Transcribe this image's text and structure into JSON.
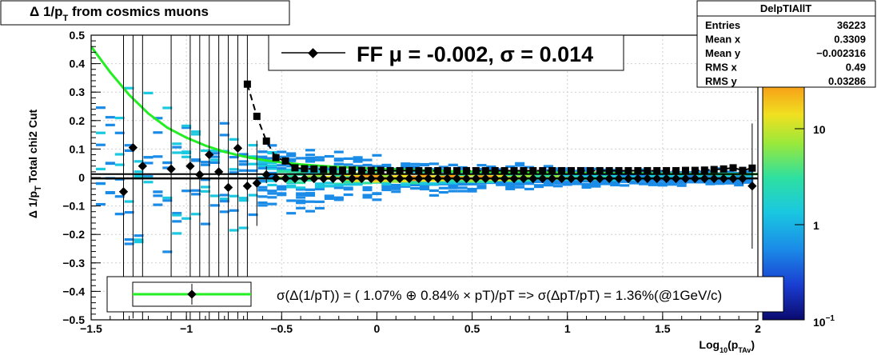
{
  "title": {
    "delta": "Δ 1/p",
    "sub": "T",
    "rest": " from cosmics muons"
  },
  "ylabel": {
    "main": "Δ 1/p",
    "sub": "T",
    "rest": "  Total chi2 Cut"
  },
  "xlabel": {
    "main": "Log",
    "sub1": "10",
    "mid": "(p",
    "sub2": "TAv",
    "end": ")"
  },
  "stats": {
    "title": "DelpTIAllT",
    "rows": [
      {
        "name": "Entries",
        "value": "36223"
      },
      {
        "name": "Mean x",
        "value": "0.3309"
      },
      {
        "name": "Mean y",
        "value": "−0.002316"
      },
      {
        "name": "RMS x",
        "value": "0.49"
      },
      {
        "name": "RMS y",
        "value": "0.03286"
      }
    ]
  },
  "fit_legend": "FF μ = -0.002, σ =   0.014",
  "resolution_legend": "σ(Δ(1/pT)) = ( 1.07% ⊕  0.84% × pT)/pT => σ(ΔpT/pT) =  1.36%(@1GeV/c)",
  "colors": {
    "fit_curve": "#22ee22",
    "markers": "#000000",
    "frame": "#000000"
  },
  "chart_data": {
    "type": "scatter",
    "xlim": [
      -1.5,
      2
    ],
    "ylim": [
      -0.5,
      0.5
    ],
    "zlim": [
      0.1,
      40
    ],
    "zscale": "log",
    "x_ticks": [
      "−1.5",
      "−1",
      "−0.5",
      "0",
      "0.5",
      "1",
      "1.5",
      "2"
    ],
    "y_ticks": [
      "−0.5",
      "−0.4",
      "−0.3",
      "−0.2",
      "−0.1",
      "0",
      "0.1",
      "0.2",
      "0.3",
      "0.4",
      "0.5"
    ],
    "z_ticks": [
      "10",
      "1",
      "10"
    ],
    "z_tick_exponent": "−1",
    "grid": true,
    "mean_points": {
      "x": [
        -1.33,
        -1.28,
        -1.23,
        -1.08,
        -0.98,
        -0.93,
        -0.88,
        -0.83,
        -0.78,
        -0.73,
        -0.68,
        -0.63,
        -0.58,
        -0.53,
        -0.48,
        -0.43,
        -0.38,
        -0.33,
        -0.28,
        -0.23,
        -0.18,
        -0.13,
        -0.08,
        -0.03,
        0.02,
        0.07,
        0.12,
        0.17,
        0.22,
        0.27,
        0.32,
        0.37,
        0.42,
        0.47,
        0.52,
        0.57,
        0.62,
        0.67,
        0.72,
        0.77,
        0.82,
        0.87,
        0.92,
        0.97,
        1.02,
        1.07,
        1.12,
        1.17,
        1.22,
        1.27,
        1.32,
        1.37,
        1.42,
        1.47,
        1.52,
        1.57,
        1.62,
        1.67,
        1.72,
        1.77,
        1.82,
        1.87,
        1.92,
        1.97
      ],
      "y": [
        -0.05,
        0.105,
        0.04,
        0.03,
        0.04,
        0.01,
        0.08,
        0.02,
        -0.035,
        0.103,
        -0.03,
        -0.02,
        0.01,
        -0.002,
        -0.003,
        -0.004,
        -0.004,
        -0.004,
        -0.004,
        -0.004,
        -0.004,
        -0.004,
        -0.004,
        -0.004,
        -0.004,
        -0.004,
        -0.004,
        -0.004,
        -0.004,
        -0.004,
        -0.004,
        -0.004,
        -0.004,
        -0.004,
        -0.004,
        -0.004,
        -0.004,
        -0.004,
        -0.004,
        -0.004,
        -0.004,
        -0.004,
        -0.004,
        -0.004,
        -0.004,
        -0.004,
        -0.004,
        -0.004,
        -0.004,
        -0.004,
        -0.004,
        -0.004,
        -0.004,
        -0.004,
        -0.004,
        -0.004,
        -0.004,
        -0.004,
        -0.004,
        -0.004,
        -0.004,
        -0.004,
        -0.004,
        -0.03
      ],
      "err": [
        0.6,
        0.6,
        0.6,
        0.6,
        0.6,
        0.6,
        0.6,
        0.6,
        0.6,
        0.6,
        0.6,
        0.15,
        0.03,
        0.005,
        0.005,
        0.004,
        0.004,
        0.004,
        0.004,
        0.004,
        0.004,
        0.004,
        0.004,
        0.004,
        0.004,
        0.004,
        0.004,
        0.004,
        0.004,
        0.004,
        0.004,
        0.004,
        0.004,
        0.004,
        0.004,
        0.004,
        0.004,
        0.004,
        0.004,
        0.004,
        0.004,
        0.004,
        0.004,
        0.004,
        0.004,
        0.004,
        0.004,
        0.004,
        0.004,
        0.004,
        0.004,
        0.004,
        0.004,
        0.004,
        0.004,
        0.004,
        0.004,
        0.004,
        0.004,
        0.006,
        0.01,
        0.015,
        0.02,
        0.22
      ]
    },
    "sigma_points": {
      "x": [
        -0.68,
        -0.63,
        -0.58,
        -0.53,
        -0.48,
        -0.43,
        -0.38,
        -0.33,
        -0.28,
        -0.23,
        -0.18,
        -0.13,
        -0.08,
        -0.03,
        0.02,
        0.07,
        0.12,
        0.17,
        0.22,
        0.27,
        0.32,
        0.37,
        0.42,
        0.47,
        0.52,
        0.57,
        0.62,
        0.67,
        0.72,
        0.77,
        0.82,
        0.87,
        0.92,
        0.97,
        1.02,
        1.07,
        1.12,
        1.17,
        1.22,
        1.27,
        1.32,
        1.37,
        1.42,
        1.47,
        1.52,
        1.57,
        1.62,
        1.67,
        1.72,
        1.77,
        1.82,
        1.87,
        1.92,
        1.97
      ],
      "y": [
        0.328,
        0.215,
        0.128,
        0.07,
        0.058,
        0.034,
        0.031,
        0.03,
        0.028,
        0.027,
        0.026,
        0.026,
        0.025,
        0.025,
        0.025,
        0.024,
        0.024,
        0.024,
        0.024,
        0.024,
        0.024,
        0.024,
        0.024,
        0.024,
        0.024,
        0.024,
        0.024,
        0.024,
        0.024,
        0.024,
        0.024,
        0.024,
        0.024,
        0.024,
        0.024,
        0.024,
        0.024,
        0.024,
        0.024,
        0.024,
        0.024,
        0.024,
        0.024,
        0.024,
        0.024,
        0.024,
        0.025,
        0.025,
        0.026,
        0.028,
        0.03,
        0.034,
        0.025,
        0.033
      ]
    },
    "fit_curve": {
      "x": [
        -1.5,
        -1.4,
        -1.3,
        -1.2,
        -1.1,
        -1.0,
        -0.9,
        -0.8,
        -0.7,
        -0.6,
        -0.5,
        -0.4,
        -0.3,
        -0.2,
        -0.1,
        0,
        0.2,
        0.4,
        0.6,
        0.8,
        1.0,
        1.2,
        1.4,
        1.6,
        1.8,
        2.0
      ],
      "y": [
        0.46,
        0.37,
        0.29,
        0.225,
        0.175,
        0.14,
        0.112,
        0.09,
        0.074,
        0.062,
        0.053,
        0.046,
        0.041,
        0.037,
        0.034,
        0.031,
        0.026,
        0.022,
        0.02,
        0.018,
        0.016,
        0.015,
        0.014,
        0.013,
        0.012,
        0.012
      ]
    }
  }
}
